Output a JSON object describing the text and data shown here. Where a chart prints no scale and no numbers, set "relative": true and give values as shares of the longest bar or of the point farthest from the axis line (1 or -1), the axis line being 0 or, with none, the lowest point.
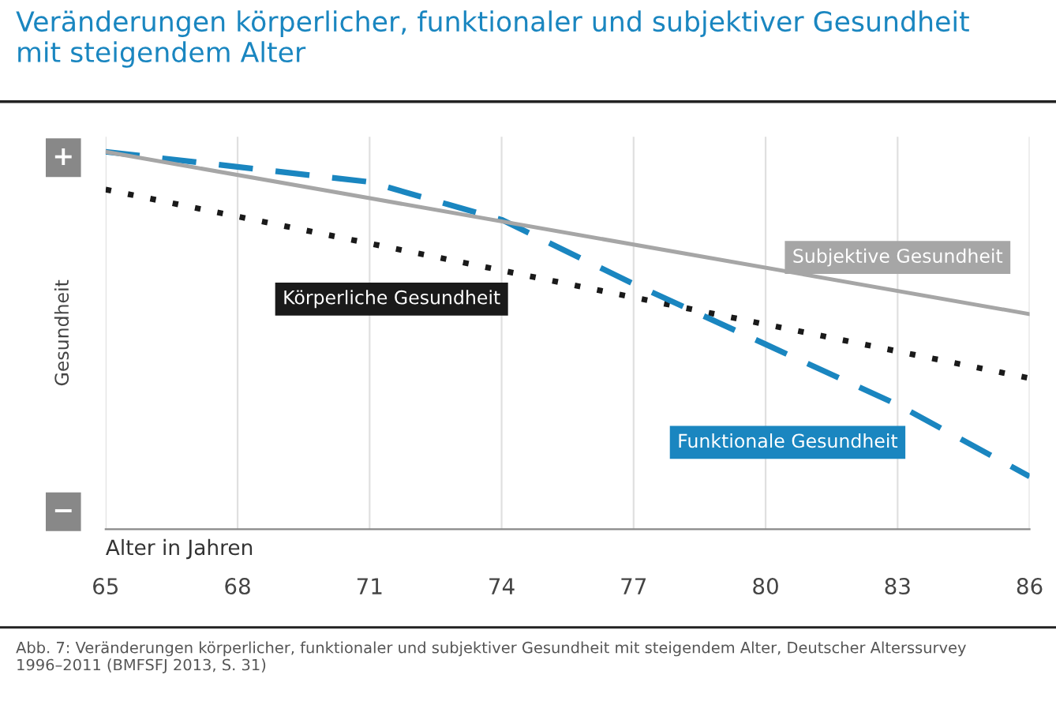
{
  "chart_data": {
    "type": "line",
    "title": "Veränderungen körperlicher, funktionaler und subjektiver Gesundheit\nmit steigendem Alter",
    "xlabel": "Alter in Jahren",
    "ylabel": "Gesundheit",
    "relative": true,
    "xlim": [
      65,
      86
    ],
    "xticks": [
      65,
      68,
      71,
      74,
      77,
      80,
      83,
      86
    ],
    "grid": "x",
    "legend": false,
    "series": [
      {
        "name": "Subjektive Gesundheit",
        "color": "#a6a6a6",
        "line_style": "solid",
        "x": [
          65,
          86
        ],
        "values": [
          1.0,
          0.57
        ]
      },
      {
        "name": "Körperliche Gesundheit",
        "color": "#1a1a1a",
        "line_style": "dotted",
        "x": [
          65,
          86
        ],
        "values": [
          0.9,
          0.4
        ]
      },
      {
        "name": "Funktionale Gesundheit",
        "color": "#1a86c0",
        "line_style": "dashed",
        "x": [
          65,
          71,
          74,
          77,
          80,
          83,
          86
        ],
        "values": [
          1.0,
          0.92,
          0.82,
          0.65,
          0.49,
          0.33,
          0.14
        ]
      }
    ],
    "annotations": [
      "+",
      "−",
      "Abb. 7: Veränderungen körperlicher, funktionaler und subjektiver Gesundheit mit steigendem Alter, Deutscher Alterssurvey 1996–2011 (BMFSFJ 2013, S. 31)"
    ]
  }
}
